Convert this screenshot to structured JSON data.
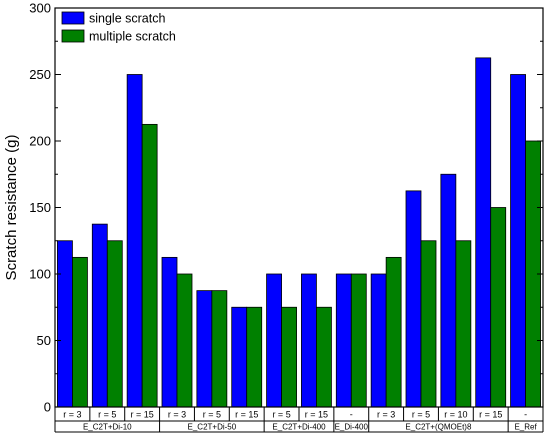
{
  "chart_data": {
    "type": "bar",
    "ylabel": "Scratch resistance (g)",
    "ylim": [
      0,
      300
    ],
    "yticks": [
      0,
      50,
      100,
      150,
      200,
      250,
      300
    ],
    "legend_position": "top-left",
    "grid": false,
    "categories": [
      "r = 3",
      "r = 5",
      "r = 15",
      "r = 3",
      "r = 5",
      "r = 15",
      "r = 5",
      "r = 15",
      "-",
      "r = 3",
      "r = 5",
      "r = 10",
      "r = 15",
      "-"
    ],
    "groups": [
      {
        "label": "E_C2T+Di-10",
        "count": 3
      },
      {
        "label": "E_C2T+Di-50",
        "count": 3
      },
      {
        "label": "E_C2T+Di-400",
        "count": 2
      },
      {
        "label": "E_Di-400",
        "count": 1
      },
      {
        "label": "E_C2T+(QMOEt)8",
        "count": 4
      },
      {
        "label": "E_Ref",
        "count": 1
      }
    ],
    "series": [
      {
        "name": "single scratch",
        "color": "#0000ff",
        "values": [
          125,
          137.5,
          250,
          112.5,
          87.5,
          75,
          100,
          100,
          100,
          100,
          162.5,
          175,
          262.5,
          250
        ]
      },
      {
        "name": "multiple scratch",
        "color": "#008000",
        "values": [
          112.5,
          125,
          212.5,
          100,
          87.5,
          75,
          75,
          75,
          100,
          112.5,
          125,
          125,
          150,
          200
        ]
      }
    ]
  }
}
